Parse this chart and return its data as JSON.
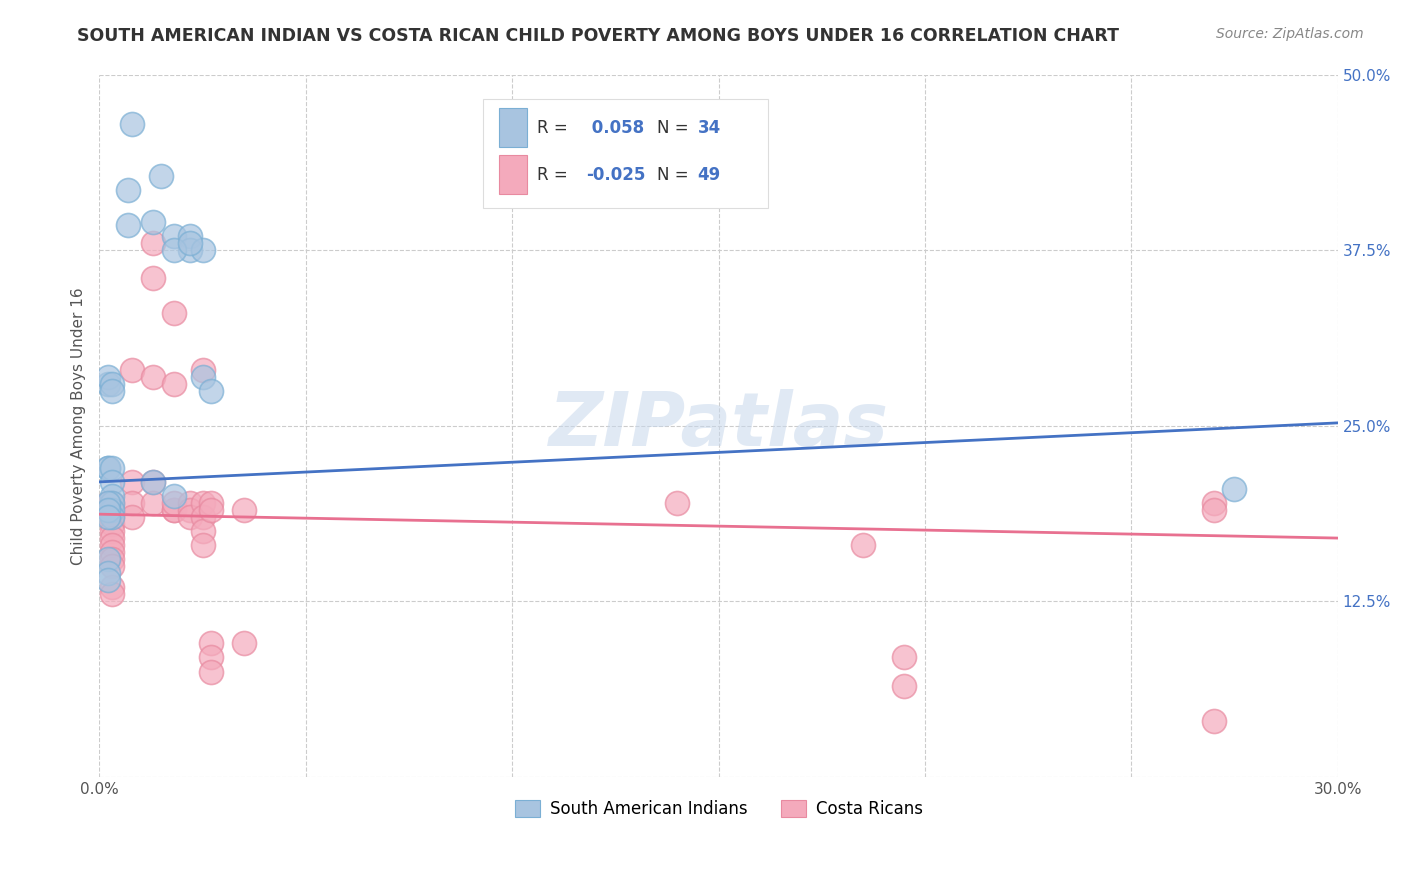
{
  "title": "SOUTH AMERICAN INDIAN VS COSTA RICAN CHILD POVERTY AMONG BOYS UNDER 16 CORRELATION CHART",
  "source": "Source: ZipAtlas.com",
  "ylabel": "Child Poverty Among Boys Under 16",
  "xlim": [
    0.0,
    0.3
  ],
  "ylim": [
    0.0,
    0.5
  ],
  "xticks": [
    0.0,
    0.05,
    0.1,
    0.15,
    0.2,
    0.25,
    0.3
  ],
  "yticks": [
    0.0,
    0.125,
    0.25,
    0.375,
    0.5
  ],
  "blue_R": 0.058,
  "blue_N": 34,
  "pink_R": -0.025,
  "pink_N": 49,
  "blue_color": "#A8C4E0",
  "pink_color": "#F4AABC",
  "blue_edge_color": "#7BAFD4",
  "pink_edge_color": "#E88AA0",
  "blue_line_color": "#4472C4",
  "pink_line_color": "#E87090",
  "background_color": "#FFFFFF",
  "grid_color": "#CCCCCC",
  "legend_blue_label": "South American Indians",
  "legend_pink_label": "Costa Ricans",
  "blue_line_x0": 0.0,
  "blue_line_y0": 0.21,
  "blue_line_x1": 0.3,
  "blue_line_y1": 0.252,
  "pink_line_x0": 0.0,
  "pink_line_y0": 0.187,
  "pink_line_x1": 0.3,
  "pink_line_y1": 0.17,
  "blue_scatter_x": [
    0.008,
    0.015,
    0.013,
    0.007,
    0.007,
    0.018,
    0.022,
    0.022,
    0.025,
    0.018,
    0.022,
    0.025,
    0.027,
    0.002,
    0.002,
    0.003,
    0.003,
    0.002,
    0.002,
    0.003,
    0.003,
    0.003,
    0.013,
    0.018,
    0.003,
    0.003,
    0.003,
    0.275,
    0.002,
    0.002,
    0.002,
    0.002,
    0.002,
    0.002
  ],
  "blue_scatter_y": [
    0.465,
    0.428,
    0.395,
    0.418,
    0.393,
    0.385,
    0.385,
    0.375,
    0.375,
    0.375,
    0.38,
    0.285,
    0.275,
    0.28,
    0.285,
    0.28,
    0.275,
    0.22,
    0.22,
    0.22,
    0.21,
    0.2,
    0.21,
    0.2,
    0.195,
    0.19,
    0.185,
    0.205,
    0.195,
    0.19,
    0.185,
    0.155,
    0.145,
    0.14
  ],
  "pink_scatter_x": [
    0.002,
    0.003,
    0.003,
    0.003,
    0.003,
    0.003,
    0.003,
    0.003,
    0.003,
    0.003,
    0.003,
    0.003,
    0.003,
    0.008,
    0.008,
    0.008,
    0.008,
    0.013,
    0.013,
    0.013,
    0.013,
    0.013,
    0.018,
    0.018,
    0.018,
    0.018,
    0.018,
    0.022,
    0.022,
    0.022,
    0.025,
    0.025,
    0.025,
    0.025,
    0.025,
    0.027,
    0.027,
    0.027,
    0.027,
    0.027,
    0.035,
    0.035,
    0.14,
    0.185,
    0.195,
    0.195,
    0.27,
    0.27,
    0.27
  ],
  "pink_scatter_y": [
    0.195,
    0.195,
    0.19,
    0.185,
    0.18,
    0.175,
    0.17,
    0.165,
    0.16,
    0.155,
    0.15,
    0.135,
    0.13,
    0.29,
    0.21,
    0.195,
    0.185,
    0.38,
    0.355,
    0.285,
    0.21,
    0.195,
    0.33,
    0.28,
    0.19,
    0.19,
    0.195,
    0.195,
    0.19,
    0.185,
    0.29,
    0.195,
    0.185,
    0.175,
    0.165,
    0.195,
    0.19,
    0.095,
    0.085,
    0.075,
    0.19,
    0.095,
    0.195,
    0.165,
    0.085,
    0.065,
    0.195,
    0.19,
    0.04
  ]
}
